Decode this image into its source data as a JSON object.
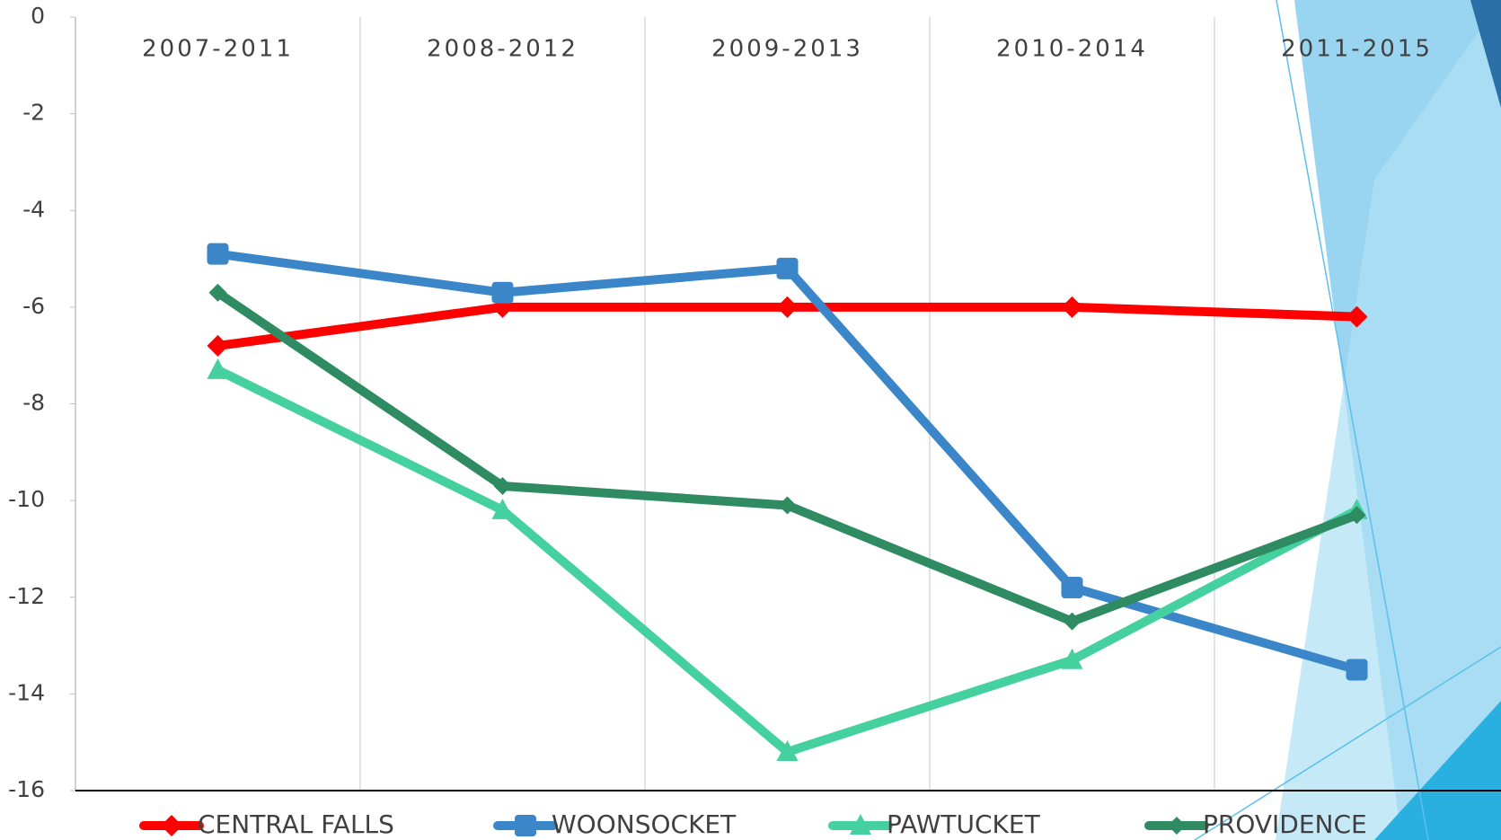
{
  "chart_data": {
    "type": "line",
    "categories": [
      "2007-2011",
      "2008-2012",
      "2009-2013",
      "2010-2014",
      "2011-2015"
    ],
    "series": [
      {
        "name": "CENTRAL FALLS",
        "color": "#ff0000",
        "marker": "diamond",
        "values": [
          -6.8,
          -6.0,
          -6.0,
          -6.0,
          -6.2
        ]
      },
      {
        "name": "WOONSOCKET",
        "color": "#3a86c8",
        "marker": "square",
        "values": [
          -4.9,
          -5.7,
          -5.2,
          -11.8,
          -13.5
        ]
      },
      {
        "name": "PAWTUCKET",
        "color": "#45d0a0",
        "marker": "triangle",
        "values": [
          -7.3,
          -10.2,
          -15.2,
          -13.3,
          -10.2
        ]
      },
      {
        "name": "PROVIDENCE",
        "color": "#2e8b62",
        "marker": "small-diamond",
        "values": [
          -5.7,
          -9.7,
          -10.1,
          -12.5,
          -10.3
        ]
      }
    ],
    "ylim": [
      -16,
      0
    ],
    "yticks": [
      0,
      -2,
      -4,
      -6,
      -8,
      -10,
      -12,
      -14,
      -16
    ],
    "grid": true
  }
}
